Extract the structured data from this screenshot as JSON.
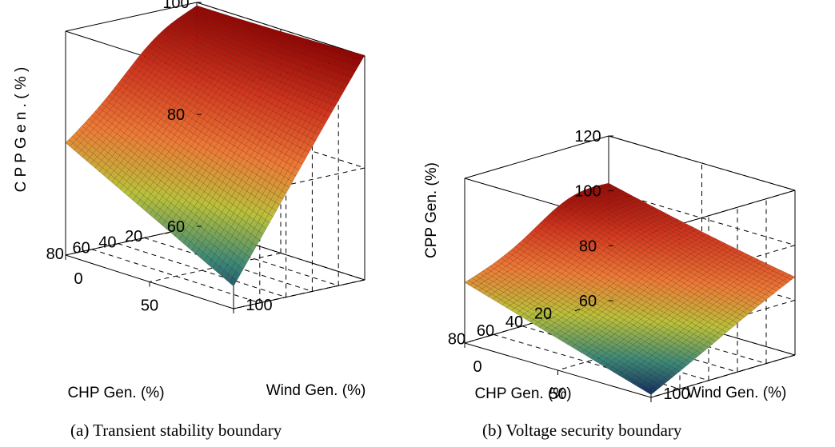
{
  "chart_data": [
    {
      "type": "surface",
      "caption": "(a) Transient stability boundary",
      "xlabel": "CHP Gen. (%)",
      "ylabel": "Wind Gen. (%)",
      "zlabel": "C P P  G e n .  ( % )",
      "x_ticks": [
        "20",
        "40",
        "60",
        "80"
      ],
      "y_ticks": [
        "0",
        "50",
        "100"
      ],
      "z_ticks": [
        "60",
        "80",
        "100"
      ],
      "xlim": [
        0,
        100
      ],
      "ylim": [
        0,
        100
      ],
      "zlim": [
        60,
        100
      ],
      "colormap": [
        "#8b0000",
        "#d2361e",
        "#ee7a36",
        "#b9c23a",
        "#3a8a78",
        "#0a1f5c"
      ],
      "corner_values": {
        "chp_0_wind_0": 98,
        "chp_100_wind_0": 80,
        "chp_0_wind_100": 100,
        "chp_100_wind_100": 64,
        "peak_chp": 30,
        "peak_value": 101
      },
      "grid": true,
      "box": true
    },
    {
      "type": "surface",
      "caption": "(b) Voltage security boundary",
      "xlabel": "CHP Gen. (%)",
      "ylabel": "Wind Gen. (%)",
      "zlabel": "CPP Gen. (%)",
      "x_ticks": [
        "20",
        "40",
        "60",
        "80"
      ],
      "y_ticks": [
        "0",
        "50",
        "100"
      ],
      "z_ticks": [
        "60",
        "80",
        "100",
        "120"
      ],
      "xlim": [
        0,
        100
      ],
      "ylim": [
        0,
        100
      ],
      "zlim": [
        60,
        120
      ],
      "colormap": [
        "#8b0000",
        "#d2361e",
        "#ee7a36",
        "#b9c23a",
        "#3a8a78",
        "#0a1f5c"
      ],
      "corner_values": {
        "chp_0_wind_0": 98,
        "chp_100_wind_0": 82,
        "chp_0_wind_100": 88,
        "chp_100_wind_100": 61,
        "peak_chp": 25,
        "peak_value": 106
      },
      "grid": true,
      "box": true
    }
  ]
}
